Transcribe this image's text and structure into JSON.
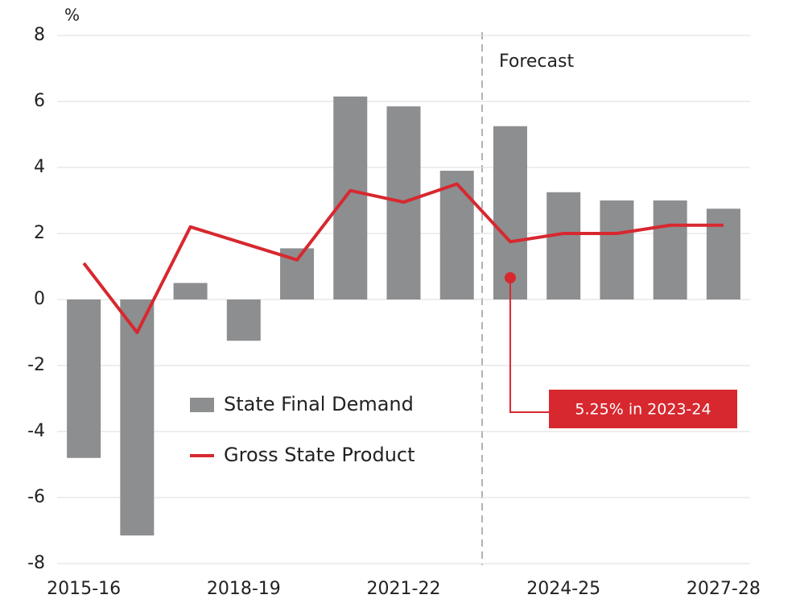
{
  "chart_data": {
    "type": "bar",
    "y_unit_label": "%",
    "categories": [
      "2015-16",
      null,
      null,
      "2018-19",
      null,
      null,
      "2021-22",
      null,
      null,
      "2024-25",
      null,
      null,
      "2027-28"
    ],
    "series": [
      {
        "name": "State Final Demand",
        "type": "bar",
        "color": "#8d8e90",
        "values": [
          -4.8,
          -7.15,
          0.5,
          -1.25,
          1.55,
          6.15,
          5.85,
          3.9,
          5.25,
          3.25,
          3.0,
          3.0,
          2.75
        ]
      },
      {
        "name": "Gross State Product",
        "type": "line",
        "color": "#d7282f",
        "values": [
          1.1,
          -1.0,
          2.2,
          1.7,
          1.2,
          3.3,
          2.95,
          3.5,
          1.75,
          2.0,
          2.0,
          2.25,
          2.25
        ]
      }
    ],
    "ylim": [
      -8,
      8
    ],
    "yticks": [
      -8,
      -6,
      -4,
      -2,
      0,
      2,
      4,
      6,
      8
    ],
    "grid": true,
    "legend": "center-left",
    "annotations": {
      "forecast": "Forecast",
      "callout": "5.25% in 2023-24"
    }
  }
}
